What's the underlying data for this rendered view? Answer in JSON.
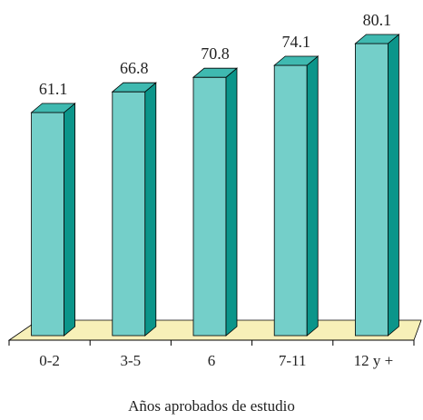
{
  "chart_data": {
    "type": "bar",
    "style": "3d-column",
    "title": "",
    "xlabel": "Años aprobados de estudio",
    "ylabel": "",
    "categories": [
      "0-2",
      "3-5",
      "6",
      "7-11",
      "12 y +"
    ],
    "values": [
      61.1,
      66.8,
      70.8,
      74.1,
      80.1
    ],
    "value_labels": [
      "61.1",
      "66.8",
      "70.8",
      "74.1",
      "80.1"
    ],
    "data_labels": true,
    "grid": false,
    "legend": "none",
    "colors": {
      "bar_front": "#74cfc9",
      "bar_side": "#0b958a",
      "bar_top": "#3fb9b0",
      "floor": "#f7f0b8",
      "outline": "#000000"
    }
  }
}
